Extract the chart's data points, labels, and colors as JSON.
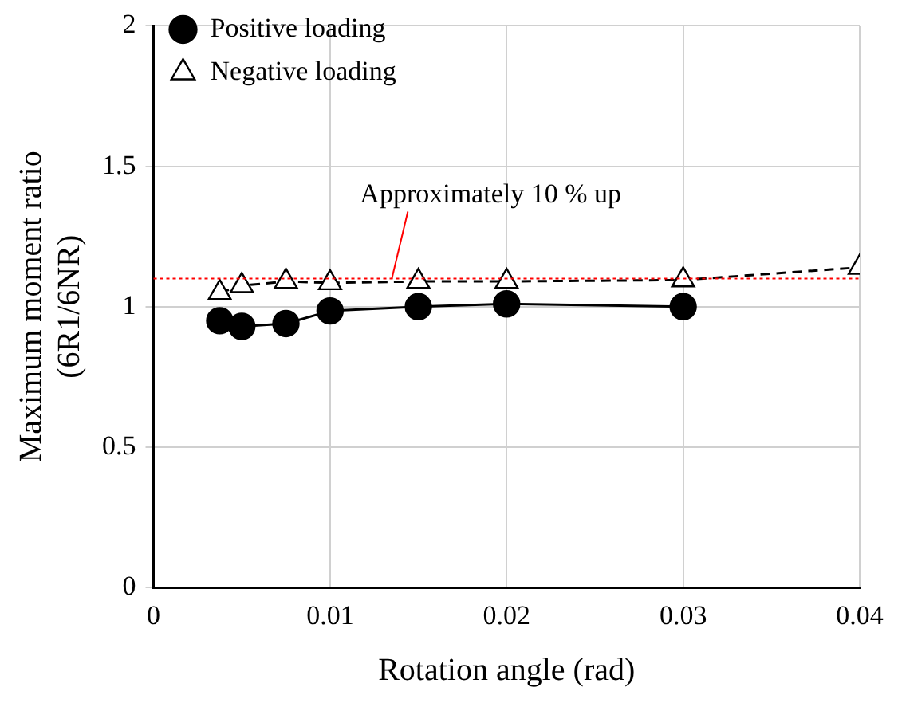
{
  "chart_data": {
    "type": "line",
    "xlabel": "Rotation angle (rad)",
    "ylabel": "Maximum moment ratio\n(6R1/6NR)",
    "xlim": [
      0,
      0.04
    ],
    "xticks": [
      0,
      0.01,
      0.02,
      0.03,
      0.04
    ],
    "ylim": [
      0,
      2
    ],
    "yticks": [
      0,
      0.5,
      1,
      1.5,
      2
    ],
    "grid": true,
    "legend": "top left",
    "series": [
      {
        "name": "Positive loading",
        "color": "#000000",
        "marker": "circle",
        "line_style": "solid",
        "x": [
          0.00375,
          0.005,
          0.0075,
          0.01,
          0.015,
          0.02,
          0.03
        ],
        "values": [
          0.95,
          0.93,
          0.94,
          0.985,
          1.0,
          1.01,
          1.0
        ]
      },
      {
        "name": "Negative loading",
        "color": "#000000",
        "marker": "triangle",
        "line_style": "dashed",
        "x": [
          0.00375,
          0.005,
          0.0075,
          0.01,
          0.015,
          0.02,
          0.03,
          0.04
        ],
        "values": [
          1.05,
          1.075,
          1.09,
          1.085,
          1.09,
          1.09,
          1.095,
          1.14
        ]
      }
    ],
    "ref_lines": [
      {
        "axis": "y",
        "value": 1.1,
        "color": "#ff0000",
        "line_style": "dotted"
      }
    ],
    "annotations": [
      {
        "text": "Approximately 10 % up",
        "x": 0.0135,
        "y": 1.1
      }
    ]
  }
}
